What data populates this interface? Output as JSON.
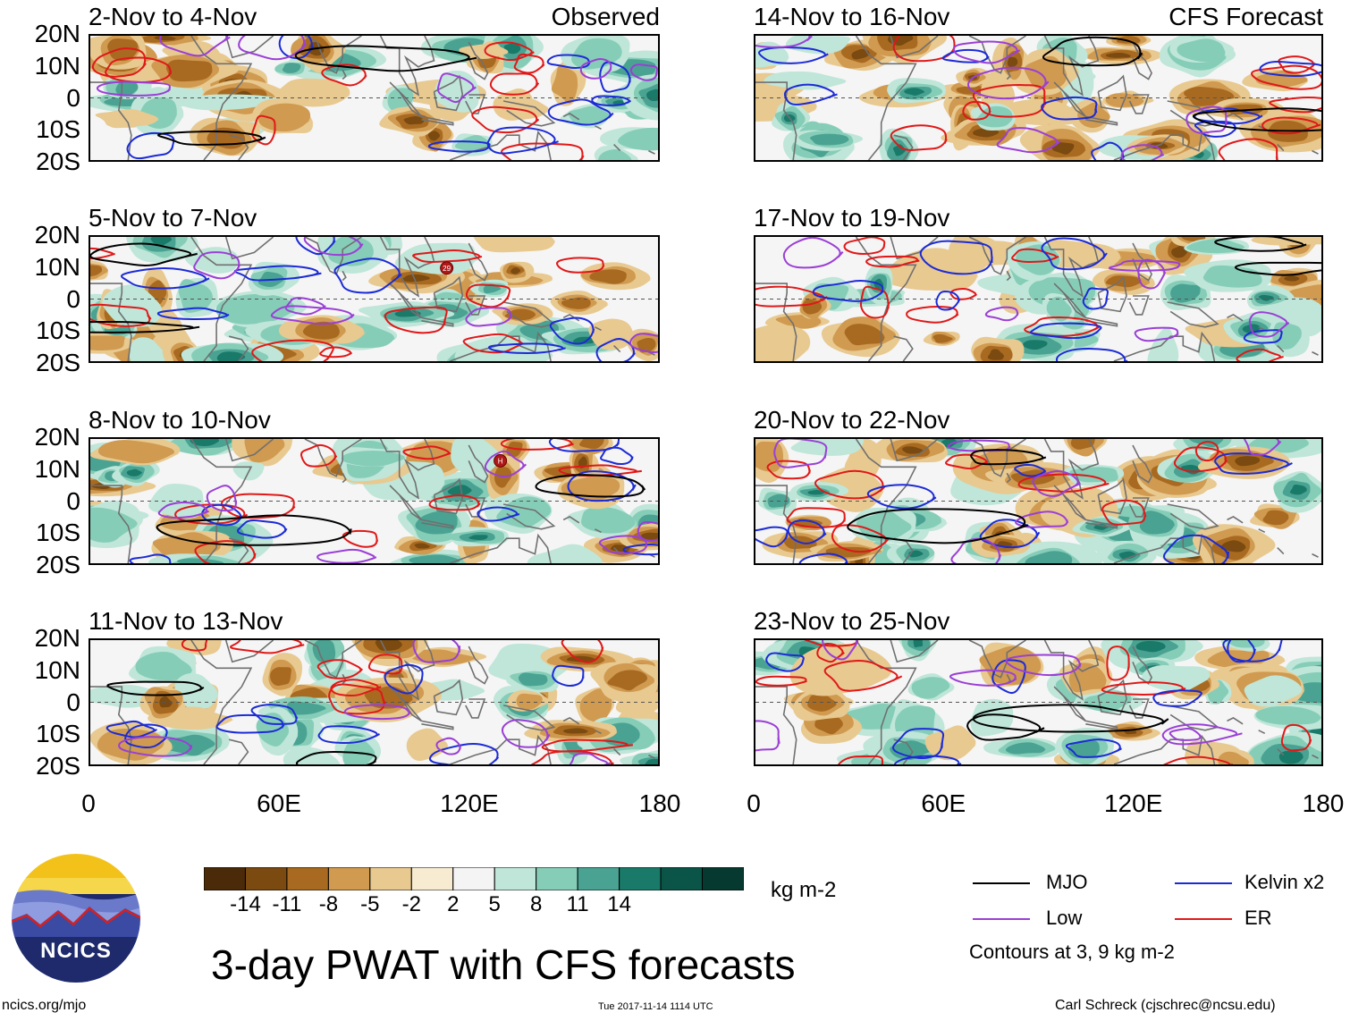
{
  "figure": {
    "title": "3-day PWAT with CFS forecasts",
    "timestamp": "Tue 2017-11-14 1114 UTC",
    "credit_left": "ncics.org/mjo",
    "credit_right": "Carl Schreck (cjschrec@ncsu.edu)",
    "logo_text": "NCICS"
  },
  "axes": {
    "y_ticks": [
      "20N",
      "10N",
      "0",
      "10S",
      "20S"
    ],
    "x_ticks": [
      "0",
      "60E",
      "120E",
      "180"
    ],
    "lat_range": [
      -20,
      20
    ],
    "lon_range": [
      0,
      180
    ]
  },
  "panels_left": [
    {
      "title": "2-Nov to 4-Nov",
      "label": "Observed"
    },
    {
      "title": "5-Nov to 7-Nov",
      "label": ""
    },
    {
      "title": "8-Nov to 10-Nov",
      "label": ""
    },
    {
      "title": "11-Nov to 13-Nov",
      "label": ""
    }
  ],
  "panels_right": [
    {
      "title": "14-Nov to 16-Nov",
      "label": "CFS Forecast"
    },
    {
      "title": "17-Nov to 19-Nov",
      "label": ""
    },
    {
      "title": "20-Nov to 22-Nov",
      "label": ""
    },
    {
      "title": "23-Nov to 25-Nov",
      "label": ""
    }
  ],
  "colorbar": {
    "units": "kg m-2",
    "ticks": [
      "-14",
      "-11",
      "-8",
      "-5",
      "-2",
      "2",
      "5",
      "8",
      "11",
      "14"
    ],
    "colors": [
      "#4a2a08",
      "#7a4a10",
      "#a86a20",
      "#d09a50",
      "#e8c990",
      "#f7ecd2",
      "#f4f4f4",
      "#bfe6d9",
      "#86cdb8",
      "#4aa392",
      "#1a7a6a",
      "#0a5548",
      "#063a30"
    ]
  },
  "legend": {
    "items": [
      {
        "label": "MJO",
        "color": "#000000"
      },
      {
        "label": "Kelvin x2",
        "color": "#1c2bd6"
      },
      {
        "label": "Low",
        "color": "#9a3fd6"
      },
      {
        "label": "ER",
        "color": "#e01818"
      }
    ],
    "note": "Contours at 3, 9 kg m-2"
  },
  "storm_markers": [
    {
      "panel": "left-2",
      "lon": 113,
      "lat": 10,
      "text": "29"
    },
    {
      "panel": "left-3",
      "lon": 130,
      "lat": 13,
      "text": "H"
    }
  ]
}
